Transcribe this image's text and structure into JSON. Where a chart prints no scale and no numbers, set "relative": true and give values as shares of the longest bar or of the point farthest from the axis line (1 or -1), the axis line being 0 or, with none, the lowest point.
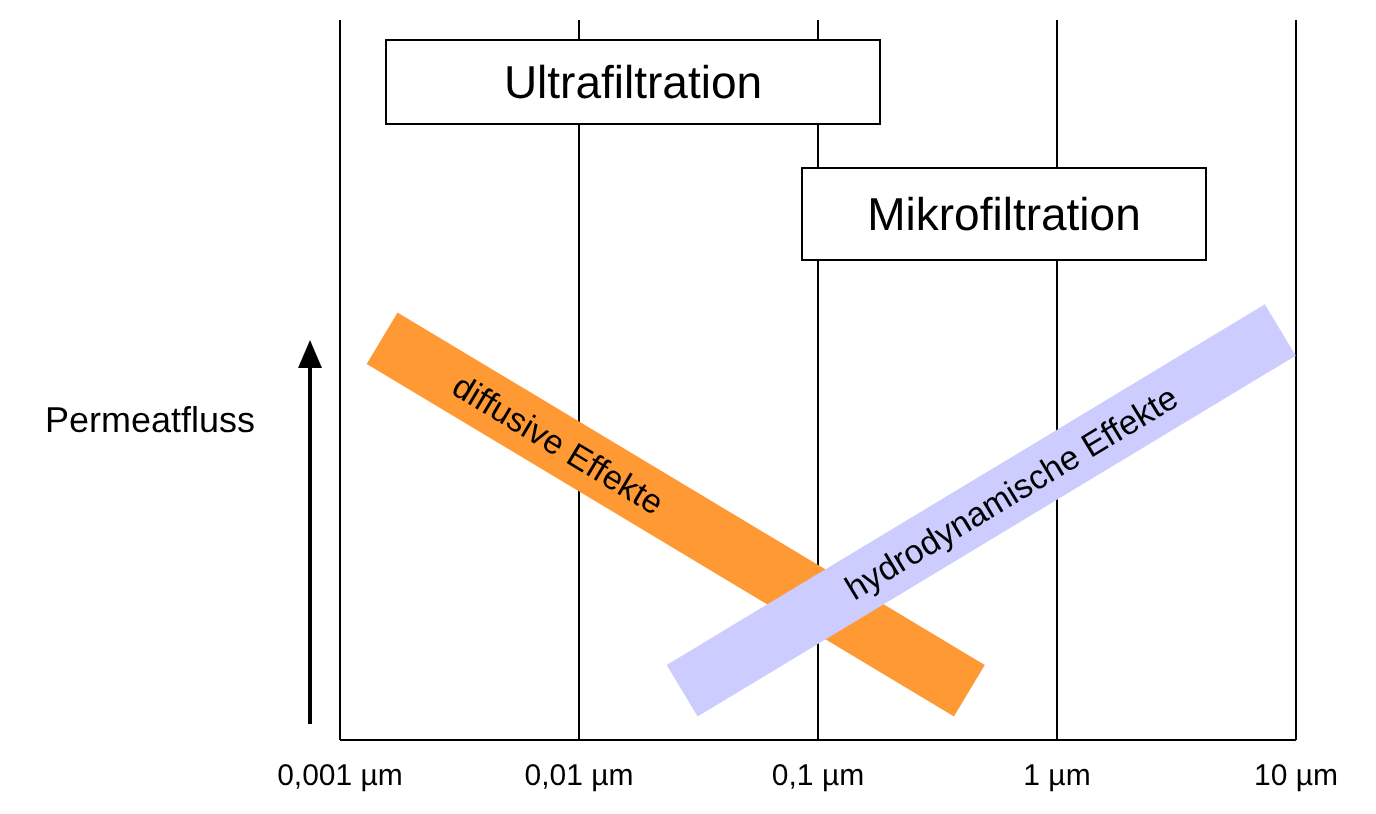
{
  "chart_data": {
    "type": "line",
    "relative": true,
    "log": "x",
    "ylabel": "Permeatfluss",
    "xlim": [
      0.001,
      10
    ],
    "xticks": [
      {
        "value": 0.001,
        "label": "0,001 µm"
      },
      {
        "value": 0.01,
        "label": "0,01 µm"
      },
      {
        "value": 0.1,
        "label": "0,1 µm"
      },
      {
        "value": 1,
        "label": "1 µm"
      },
      {
        "value": 10,
        "label": "10 µm"
      }
    ],
    "grid": "x",
    "series": [
      {
        "name": "diffusive Effekte",
        "color": "#ff9933",
        "x": [
          0.0015,
          0.43
        ],
        "values": [
          0.98,
          0.12
        ]
      },
      {
        "name": "hydrodynamische Effekte",
        "color": "#ccccff",
        "x": [
          0.027,
          8.6
        ],
        "values": [
          0.12,
          1
        ]
      }
    ],
    "annotations": [
      "Ultrafiltration",
      "Mikrofiltration"
    ]
  }
}
